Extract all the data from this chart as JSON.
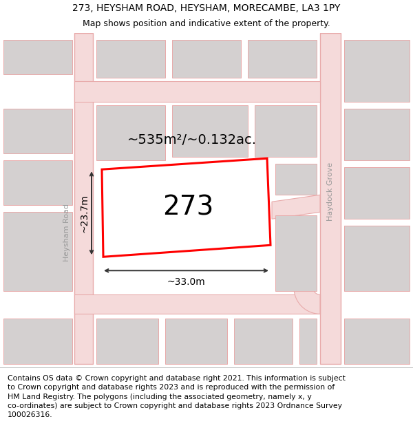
{
  "title_line1": "273, HEYSHAM ROAD, HEYSHAM, MORECAMBE, LA3 1PY",
  "title_line2": "Map shows position and indicative extent of the property.",
  "footer_text": "Contains OS data © Crown copyright and database right 2021. This information is subject\nto Crown copyright and database rights 2023 and is reproduced with the permission of\nHM Land Registry. The polygons (including the associated geometry, namely x, y\nco-ordinates) are subject to Crown copyright and database rights 2023 Ordnance Survey\n100026316.",
  "property_number": "273",
  "area_text": "~535m²/~0.132ac.",
  "width_text": "~33.0m",
  "height_text": "~23.7m",
  "street_label_left": "Heysham Road",
  "street_label_right": "Haydock Grove",
  "map_bg": "#f2e8e8",
  "road_fill": "#f5dada",
  "road_edge": "#e8aaaa",
  "bldg_fill": "#d4d0d0",
  "bldg_edge": "#c8c4c4",
  "plot_color": "#ff0000",
  "dim_color": "#333333",
  "title_fontsize": 10,
  "subtitle_fontsize": 9,
  "footer_fontsize": 7.8,
  "number_fontsize": 28,
  "area_fontsize": 14,
  "dim_fontsize": 10,
  "street_fontsize": 8
}
